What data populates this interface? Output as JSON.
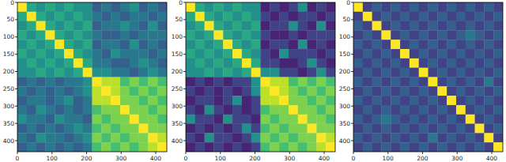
{
  "chart_data": [
    {
      "type": "heatmap",
      "color": "viridis",
      "zlim": [
        0,
        1
      ],
      "xlim": [
        0,
        432
      ],
      "ylim": [
        432,
        0
      ],
      "xticks": [
        0,
        100,
        200,
        300,
        400
      ],
      "yticks": [
        0,
        50,
        100,
        150,
        200,
        250,
        300,
        350,
        400
      ],
      "cells": [
        [
          1.0,
          0.6,
          0.5,
          0.6,
          0.5,
          0.6,
          0.5,
          0.5,
          0.3,
          0.4,
          0.3,
          0.4,
          0.5,
          0.3,
          0.4,
          0.3
        ],
        [
          0.6,
          1.0,
          0.6,
          0.5,
          0.6,
          0.5,
          0.6,
          0.5,
          0.4,
          0.3,
          0.4,
          0.3,
          0.4,
          0.4,
          0.3,
          0.4
        ],
        [
          0.5,
          0.6,
          1.0,
          0.6,
          0.5,
          0.6,
          0.5,
          0.6,
          0.3,
          0.4,
          0.4,
          0.5,
          0.4,
          0.3,
          0.5,
          0.3
        ],
        [
          0.6,
          0.5,
          0.6,
          1.0,
          0.6,
          0.5,
          0.6,
          0.5,
          0.4,
          0.3,
          0.3,
          0.4,
          0.3,
          0.4,
          0.4,
          0.4
        ],
        [
          0.5,
          0.6,
          0.5,
          0.6,
          1.0,
          0.6,
          0.5,
          0.6,
          0.3,
          0.4,
          0.4,
          0.3,
          0.5,
          0.3,
          0.4,
          0.3
        ],
        [
          0.6,
          0.5,
          0.6,
          0.5,
          0.6,
          1.0,
          0.6,
          0.5,
          0.4,
          0.3,
          0.5,
          0.4,
          0.4,
          0.4,
          0.3,
          0.4
        ],
        [
          0.5,
          0.6,
          0.5,
          0.6,
          0.5,
          0.6,
          1.0,
          0.6,
          0.4,
          0.4,
          0.3,
          0.3,
          0.4,
          0.5,
          0.4,
          0.3
        ],
        [
          0.5,
          0.5,
          0.6,
          0.5,
          0.6,
          0.5,
          0.6,
          1.0,
          0.5,
          0.5,
          0.4,
          0.4,
          0.3,
          0.4,
          0.5,
          0.4
        ],
        [
          0.3,
          0.4,
          0.3,
          0.4,
          0.3,
          0.4,
          0.4,
          0.5,
          1.0,
          0.9,
          0.9,
          0.7,
          0.8,
          0.7,
          0.8,
          0.7
        ],
        [
          0.4,
          0.3,
          0.4,
          0.3,
          0.4,
          0.3,
          0.4,
          0.5,
          0.9,
          1.0,
          0.9,
          0.8,
          0.7,
          0.8,
          0.7,
          0.8
        ],
        [
          0.3,
          0.4,
          0.4,
          0.3,
          0.4,
          0.5,
          0.3,
          0.4,
          0.9,
          0.9,
          1.0,
          0.8,
          0.8,
          0.7,
          0.8,
          0.7
        ],
        [
          0.4,
          0.3,
          0.5,
          0.4,
          0.3,
          0.4,
          0.3,
          0.4,
          0.7,
          0.8,
          0.8,
          1.0,
          0.8,
          0.8,
          0.7,
          0.8
        ],
        [
          0.5,
          0.4,
          0.4,
          0.3,
          0.5,
          0.4,
          0.4,
          0.3,
          0.8,
          0.7,
          0.8,
          0.8,
          1.0,
          0.8,
          0.8,
          0.7
        ],
        [
          0.3,
          0.4,
          0.3,
          0.4,
          0.3,
          0.4,
          0.5,
          0.4,
          0.7,
          0.8,
          0.7,
          0.8,
          0.8,
          1.0,
          0.8,
          0.8
        ],
        [
          0.4,
          0.3,
          0.5,
          0.4,
          0.4,
          0.3,
          0.4,
          0.5,
          0.8,
          0.7,
          0.8,
          0.7,
          0.8,
          0.8,
          1.0,
          0.9
        ],
        [
          0.3,
          0.4,
          0.3,
          0.4,
          0.3,
          0.4,
          0.3,
          0.4,
          0.7,
          0.8,
          0.7,
          0.8,
          0.7,
          0.8,
          0.9,
          1.0
        ]
      ]
    },
    {
      "type": "heatmap",
      "color": "viridis",
      "zlim": [
        0,
        1
      ],
      "xlim": [
        0,
        432
      ],
      "ylim": [
        432,
        0
      ],
      "xticks": [
        0,
        100,
        200,
        300,
        400
      ],
      "yticks": [
        0,
        50,
        100,
        150,
        200,
        250,
        300,
        350,
        400
      ],
      "cells": [
        [
          1.0,
          0.6,
          0.5,
          0.6,
          0.5,
          0.6,
          0.5,
          0.5,
          0.1,
          0.2,
          0.1,
          0.2,
          0.5,
          0.1,
          0.2,
          0.1
        ],
        [
          0.6,
          1.0,
          0.6,
          0.5,
          0.6,
          0.5,
          0.6,
          0.5,
          0.2,
          0.1,
          0.2,
          0.1,
          0.2,
          0.2,
          0.1,
          0.2
        ],
        [
          0.5,
          0.6,
          1.0,
          0.6,
          0.5,
          0.6,
          0.5,
          0.6,
          0.1,
          0.2,
          0.2,
          0.5,
          0.2,
          0.1,
          0.5,
          0.1
        ],
        [
          0.6,
          0.5,
          0.6,
          1.0,
          0.6,
          0.5,
          0.6,
          0.5,
          0.2,
          0.1,
          0.1,
          0.2,
          0.1,
          0.2,
          0.2,
          0.2
        ],
        [
          0.5,
          0.6,
          0.5,
          0.6,
          1.0,
          0.6,
          0.5,
          0.6,
          0.1,
          0.2,
          0.2,
          0.1,
          0.5,
          0.1,
          0.2,
          0.1
        ],
        [
          0.6,
          0.5,
          0.6,
          0.5,
          0.6,
          1.0,
          0.6,
          0.5,
          0.2,
          0.1,
          0.5,
          0.2,
          0.2,
          0.2,
          0.1,
          0.2
        ],
        [
          0.5,
          0.6,
          0.5,
          0.6,
          0.5,
          0.6,
          1.0,
          0.6,
          0.2,
          0.2,
          0.1,
          0.1,
          0.2,
          0.5,
          0.2,
          0.1
        ],
        [
          0.5,
          0.5,
          0.6,
          0.5,
          0.6,
          0.5,
          0.6,
          1.0,
          0.5,
          0.5,
          0.2,
          0.2,
          0.1,
          0.2,
          0.5,
          0.2
        ],
        [
          0.1,
          0.2,
          0.1,
          0.2,
          0.1,
          0.2,
          0.2,
          0.5,
          1.0,
          0.9,
          0.9,
          0.7,
          0.8,
          0.7,
          0.8,
          0.7
        ],
        [
          0.2,
          0.1,
          0.2,
          0.1,
          0.2,
          0.1,
          0.2,
          0.5,
          0.9,
          1.0,
          0.9,
          0.8,
          0.7,
          0.8,
          0.7,
          0.8
        ],
        [
          0.1,
          0.2,
          0.2,
          0.1,
          0.2,
          0.5,
          0.1,
          0.2,
          0.9,
          0.9,
          1.0,
          0.8,
          0.8,
          0.7,
          0.8,
          0.7
        ],
        [
          0.2,
          0.1,
          0.5,
          0.2,
          0.1,
          0.2,
          0.1,
          0.2,
          0.7,
          0.8,
          0.8,
          1.0,
          0.8,
          0.8,
          0.7,
          0.8
        ],
        [
          0.5,
          0.2,
          0.2,
          0.1,
          0.5,
          0.2,
          0.2,
          0.1,
          0.8,
          0.7,
          0.8,
          0.8,
          1.0,
          0.8,
          0.8,
          0.7
        ],
        [
          0.1,
          0.2,
          0.1,
          0.2,
          0.1,
          0.2,
          0.5,
          0.2,
          0.7,
          0.8,
          0.7,
          0.8,
          0.8,
          1.0,
          0.8,
          0.8
        ],
        [
          0.2,
          0.1,
          0.5,
          0.2,
          0.2,
          0.1,
          0.2,
          0.5,
          0.8,
          0.7,
          0.8,
          0.7,
          0.8,
          0.8,
          1.0,
          0.9
        ],
        [
          0.1,
          0.2,
          0.1,
          0.2,
          0.1,
          0.2,
          0.1,
          0.2,
          0.7,
          0.8,
          0.7,
          0.8,
          0.7,
          0.8,
          0.9,
          1.0
        ]
      ]
    },
    {
      "type": "heatmap",
      "color": "viridis",
      "zlim": [
        0,
        1
      ],
      "xlim": [
        0,
        432
      ],
      "ylim": [
        432,
        0
      ],
      "xticks": [
        0,
        100,
        200,
        300,
        400
      ],
      "yticks": [
        0,
        50,
        100,
        150,
        200,
        250,
        300,
        350,
        400
      ],
      "cells": [
        [
          1.0,
          0.2,
          0.3,
          0.2,
          0.3,
          0.2,
          0.3,
          0.2,
          0.3,
          0.2,
          0.3,
          0.2,
          0.3,
          0.2,
          0.3,
          0.2
        ],
        [
          0.2,
          1.0,
          0.2,
          0.3,
          0.2,
          0.3,
          0.2,
          0.3,
          0.2,
          0.3,
          0.2,
          0.3,
          0.2,
          0.3,
          0.2,
          0.3
        ],
        [
          0.3,
          0.2,
          1.0,
          0.2,
          0.3,
          0.2,
          0.3,
          0.2,
          0.3,
          0.2,
          0.3,
          0.2,
          0.3,
          0.2,
          0.3,
          0.2
        ],
        [
          0.2,
          0.3,
          0.2,
          1.0,
          0.2,
          0.3,
          0.2,
          0.3,
          0.2,
          0.3,
          0.2,
          0.3,
          0.4,
          0.3,
          0.2,
          0.3
        ],
        [
          0.3,
          0.2,
          0.3,
          0.2,
          1.0,
          0.2,
          0.3,
          0.2,
          0.3,
          0.2,
          0.3,
          0.2,
          0.3,
          0.2,
          0.3,
          0.2
        ],
        [
          0.2,
          0.3,
          0.2,
          0.3,
          0.2,
          1.0,
          0.2,
          0.3,
          0.2,
          0.3,
          0.2,
          0.3,
          0.2,
          0.3,
          0.2,
          0.3
        ],
        [
          0.3,
          0.2,
          0.3,
          0.2,
          0.3,
          0.2,
          1.0,
          0.2,
          0.3,
          0.2,
          0.3,
          0.2,
          0.3,
          0.2,
          0.3,
          0.2
        ],
        [
          0.2,
          0.3,
          0.2,
          0.3,
          0.2,
          0.3,
          0.2,
          1.0,
          0.2,
          0.3,
          0.2,
          0.3,
          0.2,
          0.3,
          0.2,
          0.3
        ],
        [
          0.3,
          0.2,
          0.3,
          0.2,
          0.3,
          0.2,
          0.3,
          0.2,
          1.0,
          0.2,
          0.3,
          0.2,
          0.3,
          0.2,
          0.4,
          0.2
        ],
        [
          0.2,
          0.3,
          0.2,
          0.3,
          0.2,
          0.3,
          0.2,
          0.3,
          0.2,
          1.0,
          0.2,
          0.3,
          0.2,
          0.3,
          0.2,
          0.3
        ],
        [
          0.3,
          0.2,
          0.3,
          0.2,
          0.3,
          0.2,
          0.3,
          0.2,
          0.3,
          0.2,
          1.0,
          0.2,
          0.3,
          0.2,
          0.3,
          0.2
        ],
        [
          0.2,
          0.3,
          0.2,
          0.3,
          0.2,
          0.3,
          0.2,
          0.3,
          0.2,
          0.3,
          0.2,
          1.0,
          0.2,
          0.3,
          0.2,
          0.3
        ],
        [
          0.3,
          0.2,
          0.3,
          0.4,
          0.3,
          0.2,
          0.3,
          0.2,
          0.3,
          0.2,
          0.3,
          0.2,
          1.0,
          0.2,
          0.3,
          0.2
        ],
        [
          0.2,
          0.3,
          0.2,
          0.3,
          0.2,
          0.3,
          0.2,
          0.3,
          0.2,
          0.3,
          0.2,
          0.3,
          0.2,
          1.0,
          0.2,
          0.3
        ],
        [
          0.3,
          0.2,
          0.3,
          0.2,
          0.3,
          0.2,
          0.3,
          0.2,
          0.4,
          0.2,
          0.3,
          0.2,
          0.3,
          0.2,
          1.0,
          0.2
        ],
        [
          0.2,
          0.3,
          0.2,
          0.3,
          0.2,
          0.3,
          0.2,
          0.3,
          0.2,
          0.3,
          0.2,
          0.3,
          0.2,
          0.3,
          0.2,
          1.0
        ]
      ]
    }
  ]
}
